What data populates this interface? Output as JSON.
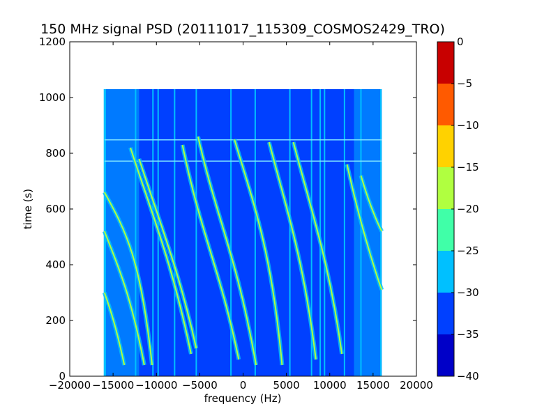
{
  "chart_data": {
    "type": "heatmap",
    "title": "150 MHz signal PSD (20111017_115309_COSMOS2429_TRO)",
    "xlabel": "frequency (Hz)",
    "ylabel": "time (s)",
    "xlim": [
      -20000,
      20000
    ],
    "ylim": [
      0,
      1200
    ],
    "x_ticks": [
      -20000,
      -15000,
      -10000,
      -5000,
      0,
      5000,
      10000,
      15000,
      20000
    ],
    "x_tick_labels": [
      "−20000",
      "−15000",
      "−10000",
      "−5000",
      "0",
      "5000",
      "10000",
      "15000",
      "20000"
    ],
    "y_ticks": [
      0,
      200,
      400,
      600,
      800,
      1000,
      1200
    ],
    "y_tick_labels": [
      "0",
      "200",
      "400",
      "600",
      "800",
      "1000",
      "1200"
    ],
    "data_extent": {
      "x": [
        -16000,
        16000
      ],
      "y": [
        0,
        1030
      ]
    },
    "colorbar": {
      "levels": [
        -40,
        -35,
        -30,
        -25,
        -20,
        -15,
        -10,
        -5,
        0
      ],
      "tick_labels": [
        "−40",
        "−35",
        "−30",
        "−25",
        "−20",
        "−15",
        "−10",
        "−5",
        "0"
      ],
      "colors": [
        "#0000c8",
        "#0040ff",
        "#00c0ff",
        "#40ffa8",
        "#b0ff40",
        "#ffd200",
        "#ff5a00",
        "#c80000"
      ]
    },
    "background_level_color": "#0040ff",
    "vertical_lines_hz": [
      -16000,
      -15900,
      -12400,
      -10400,
      -9800,
      -7900,
      -5400,
      -1400,
      1400,
      5400,
      7900,
      8900,
      9400,
      11700,
      13600,
      15900
    ],
    "horizontal_lines_s": [
      772,
      848
    ],
    "traces": [
      {
        "name": "S-curve",
        "x": [
          -7000,
          -4800,
          -2600,
          -500
        ],
        "y": [
          830,
          500,
          380,
          60
        ]
      },
      {
        "name": "S-curve",
        "x": [
          -5200,
          -3000,
          -700,
          1500
        ],
        "y": [
          860,
          560,
          430,
          40
        ]
      },
      {
        "name": "S-curve",
        "x": [
          -1000,
          1200,
          3300,
          4500
        ],
        "y": [
          850,
          620,
          450,
          40
        ]
      },
      {
        "name": "S-curve",
        "x": [
          3000,
          5000,
          7000,
          8400
        ],
        "y": [
          840,
          600,
          420,
          60
        ]
      },
      {
        "name": "S-curve",
        "x": [
          -13000,
          -10500,
          -8200,
          -6000
        ],
        "y": [
          820,
          580,
          410,
          80
        ]
      },
      {
        "name": "S-curve",
        "x": [
          -12000,
          -9500,
          -7400,
          -5400
        ],
        "y": [
          780,
          540,
          380,
          100
        ]
      },
      {
        "name": "S-curve",
        "x": [
          5800,
          8000,
          10000,
          11400
        ],
        "y": [
          840,
          580,
          400,
          80
        ]
      },
      {
        "name": "S-curve",
        "x": [
          -16000,
          -13500,
          -11800,
          -10500
        ],
        "y": [
          660,
          520,
          420,
          40
        ]
      },
      {
        "name": "S-curve",
        "x": [
          -16000,
          -14500,
          -13000,
          -11400
        ],
        "y": [
          520,
          400,
          300,
          40
        ]
      },
      {
        "name": "S-curve",
        "x": [
          -16000,
          -15200,
          -14600,
          -13700
        ],
        "y": [
          300,
          230,
          170,
          40
        ]
      },
      {
        "name": "S-curve",
        "x": [
          13600,
          14800,
          16000,
          16000
        ],
        "y": [
          720,
          590,
          520,
          520
        ]
      },
      {
        "name": "S-curve",
        "x": [
          12000,
          13800,
          16000,
          16000
        ],
        "y": [
          760,
          500,
          310,
          310
        ]
      }
    ]
  }
}
